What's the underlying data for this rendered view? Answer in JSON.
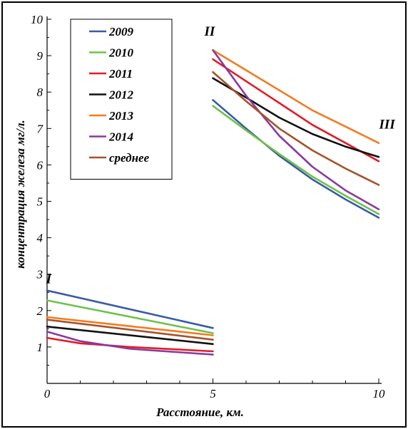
{
  "chart_data": {
    "type": "line",
    "xlabel": "Расстояние, км.",
    "ylabel": "концентрация железа мг/л.",
    "xlim": [
      0,
      10
    ],
    "ylim": [
      0,
      10
    ],
    "x_ticks": [
      "0",
      "5",
      "10"
    ],
    "y_ticks": [
      "1",
      "2",
      "3",
      "4",
      "5",
      "6",
      "7",
      "8",
      "9",
      "10"
    ],
    "legend_position": "top-left",
    "annotations": [
      {
        "text": "I",
        "x": 0.05,
        "y": 2.75
      },
      {
        "text": "II",
        "x": 4.9,
        "y": 9.55
      },
      {
        "text": "III",
        "x": 10.25,
        "y": 7.0
      }
    ],
    "series": [
      {
        "name": "2009",
        "color": "#3a5ba7",
        "segments": [
          [
            [
              0,
              2.55
            ],
            [
              5,
              1.52
            ]
          ],
          [
            [
              5,
              7.78
            ],
            [
              6,
              7.0
            ],
            [
              7,
              6.25
            ],
            [
              8,
              5.6
            ],
            [
              9,
              5.05
            ],
            [
              10,
              4.55
            ]
          ]
        ]
      },
      {
        "name": "2010",
        "color": "#6ec24a",
        "segments": [
          [
            [
              0,
              2.28
            ],
            [
              5,
              1.38
            ]
          ],
          [
            [
              5,
              7.62
            ],
            [
              6,
              6.95
            ],
            [
              7,
              6.3
            ],
            [
              8,
              5.68
            ],
            [
              9,
              5.15
            ],
            [
              10,
              4.65
            ]
          ]
        ]
      },
      {
        "name": "2011",
        "color": "#e11d26",
        "segments": [
          [
            [
              0,
              1.25
            ],
            [
              1,
              1.1
            ],
            [
              2.5,
              1.0
            ],
            [
              5,
              0.88
            ]
          ],
          [
            [
              5,
              8.9
            ],
            [
              6,
              8.3
            ],
            [
              7,
              7.7
            ],
            [
              8,
              7.1
            ],
            [
              9,
              6.6
            ],
            [
              10,
              6.1
            ]
          ]
        ]
      },
      {
        "name": "2012",
        "color": "#111111",
        "segments": [
          [
            [
              0,
              1.56
            ],
            [
              5,
              1.08
            ]
          ],
          [
            [
              5,
              8.38
            ],
            [
              6,
              7.85
            ],
            [
              7,
              7.3
            ],
            [
              8,
              6.85
            ],
            [
              9,
              6.5
            ],
            [
              10,
              6.22
            ]
          ]
        ]
      },
      {
        "name": "2013",
        "color": "#f47b20",
        "segments": [
          [
            [
              0,
              1.82
            ],
            [
              5,
              1.32
            ]
          ],
          [
            [
              5,
              9.15
            ],
            [
              6,
              8.6
            ],
            [
              7,
              8.05
            ],
            [
              8,
              7.5
            ],
            [
              9,
              7.05
            ],
            [
              10,
              6.6
            ]
          ]
        ]
      },
      {
        "name": "2014",
        "color": "#8a3a9e",
        "segments": [
          [
            [
              0,
              1.42
            ],
            [
              1,
              1.16
            ],
            [
              2.5,
              0.95
            ],
            [
              5,
              0.79
            ]
          ],
          [
            [
              5,
              9.15
            ],
            [
              6,
              7.9
            ],
            [
              7,
              6.8
            ],
            [
              8,
              5.95
            ],
            [
              9,
              5.3
            ],
            [
              10,
              4.78
            ]
          ]
        ]
      },
      {
        "name": "среднее",
        "color": "#a5522a",
        "segments": [
          [
            [
              0,
              1.75
            ],
            [
              5,
              1.2
            ]
          ],
          [
            [
              5,
              8.55
            ],
            [
              6,
              7.75
            ],
            [
              7,
              7.0
            ],
            [
              8,
              6.4
            ],
            [
              9,
              5.9
            ],
            [
              10,
              5.45
            ]
          ]
        ]
      }
    ]
  }
}
